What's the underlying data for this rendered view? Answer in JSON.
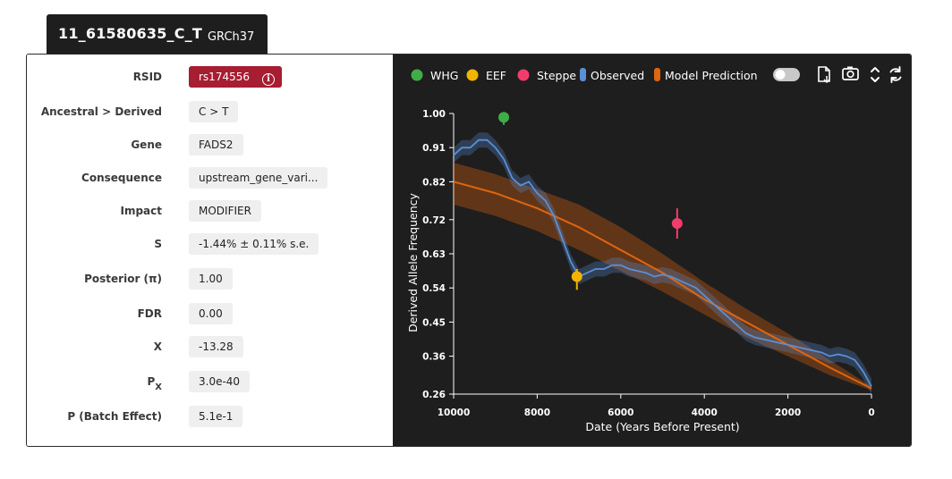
{
  "tab": {
    "variant_id": "11_61580635_C_T",
    "build": "GRCh37"
  },
  "info": {
    "rows": [
      {
        "label": "RSID",
        "value": "rs174556"
      },
      {
        "label": "Ancestral > Derived",
        "value": "C > T"
      },
      {
        "label": "Gene",
        "value": "FADS2"
      },
      {
        "label": "Consequence",
        "value": "upstream_gene_vari..."
      },
      {
        "label": "Impact",
        "value": "MODIFIER"
      },
      {
        "label": "S",
        "value": "-1.44% ± 0.11% s.e."
      },
      {
        "label": "Posterior (π)",
        "value": "1.00"
      },
      {
        "label": "FDR",
        "value": "0.00"
      },
      {
        "label": "X",
        "value": "-13.28"
      },
      {
        "label": "P",
        "label_sub": "X",
        "value": "3.0e-40"
      },
      {
        "label": "P (Batch Effect)",
        "value": "5.1e-1"
      }
    ]
  },
  "toolbar": {
    "icons": [
      "download-file-icon",
      "camera-icon",
      "expand-collapse-icon",
      "refresh-icon"
    ],
    "toggle_state": "off"
  },
  "chart_data": {
    "type": "line",
    "xlabel": "Date (Years Before Present)",
    "ylabel": "Derived Allele Frequency",
    "xlim": [
      10000,
      0
    ],
    "ylim": [
      0.26,
      1.0
    ],
    "x_ticks": [
      10000,
      8000,
      6000,
      4000,
      2000,
      0
    ],
    "x_tick_labels": [
      "10000",
      "8000",
      "6000",
      "4000",
      "2000",
      "0"
    ],
    "y_ticks": [
      1.0,
      0.91,
      0.82,
      0.72,
      0.63,
      0.54,
      0.45,
      0.36,
      0.26
    ],
    "y_tick_labels": [
      "1.00",
      "0.91",
      "0.82",
      "0.72",
      "0.63",
      "0.54",
      "0.45",
      "0.36",
      "0.26"
    ],
    "legend": [
      {
        "name": "WHG",
        "color": "#3fae49"
      },
      {
        "name": "EEF",
        "color": "#f0b400"
      },
      {
        "name": "Steppe",
        "color": "#f03d6c"
      },
      {
        "name": "Observed",
        "color": "#5b8fd6"
      },
      {
        "name": "Model Prediction",
        "color": "#e0650e"
      }
    ],
    "observed": {
      "x": [
        10000,
        9800,
        9600,
        9400,
        9200,
        9000,
        8800,
        8600,
        8400,
        8200,
        8000,
        7800,
        7600,
        7400,
        7200,
        7000,
        6800,
        6600,
        6400,
        6200,
        6000,
        5800,
        5600,
        5400,
        5200,
        5000,
        4800,
        4600,
        4400,
        4200,
        4000,
        3800,
        3600,
        3400,
        3200,
        3000,
        2800,
        2600,
        2400,
        2200,
        2000,
        1800,
        1600,
        1400,
        1200,
        1000,
        800,
        600,
        400,
        200,
        0
      ],
      "y": [
        0.89,
        0.91,
        0.91,
        0.93,
        0.93,
        0.91,
        0.88,
        0.83,
        0.81,
        0.82,
        0.79,
        0.77,
        0.73,
        0.67,
        0.61,
        0.57,
        0.58,
        0.59,
        0.59,
        0.6,
        0.6,
        0.59,
        0.585,
        0.58,
        0.57,
        0.575,
        0.57,
        0.56,
        0.55,
        0.54,
        0.52,
        0.5,
        0.48,
        0.46,
        0.44,
        0.42,
        0.41,
        0.405,
        0.4,
        0.395,
        0.39,
        0.385,
        0.38,
        0.375,
        0.37,
        0.36,
        0.365,
        0.36,
        0.35,
        0.32,
        0.28
      ],
      "band_halfwidth": 0.02
    },
    "model": {
      "x": [
        10000,
        9000,
        8000,
        7000,
        6000,
        5000,
        4000,
        3000,
        2000,
        1000,
        0
      ],
      "y": [
        0.82,
        0.79,
        0.75,
        0.7,
        0.64,
        0.58,
        0.51,
        0.45,
        0.39,
        0.33,
        0.275
      ],
      "ci_lower": [
        0.76,
        0.73,
        0.69,
        0.64,
        0.585,
        0.53,
        0.47,
        0.41,
        0.36,
        0.31,
        0.27
      ],
      "ci_upper": [
        0.87,
        0.84,
        0.8,
        0.76,
        0.7,
        0.63,
        0.555,
        0.485,
        0.42,
        0.35,
        0.28
      ]
    },
    "ancient_points": [
      {
        "name": "WHG",
        "x": 8800,
        "y": 0.99,
        "err_lower": 0.97,
        "err_upper": 0.995
      },
      {
        "name": "EEF",
        "x": 7050,
        "y": 0.57,
        "err_lower": 0.535,
        "err_upper": 0.59
      },
      {
        "name": "Steppe",
        "x": 4650,
        "y": 0.71,
        "err_lower": 0.67,
        "err_upper": 0.75
      }
    ]
  }
}
